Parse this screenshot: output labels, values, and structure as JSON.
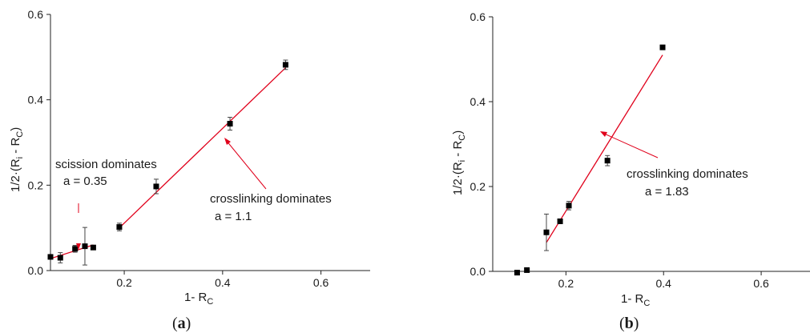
{
  "chart_data": [
    {
      "type": "scatter",
      "panel_label": "(a)",
      "xlabel": "1- R",
      "xlabel_sub": "C",
      "ylabel": "1/2·(R",
      "ylabel_sub1": "i",
      "ylabel_mid": " - R",
      "ylabel_sub2": "C",
      "ylabel_end": ")",
      "xlim": [
        0.05,
        0.7
      ],
      "ylim": [
        0.0,
        0.6
      ],
      "xticks": [
        "0.2",
        "0.4",
        "0.6"
      ],
      "xtick_values": [
        0.2,
        0.4,
        0.6
      ],
      "yticks": [
        "0.0",
        "0.2",
        "0.4",
        "0.6"
      ],
      "ytick_values": [
        0.0,
        0.2,
        0.4,
        0.6
      ],
      "grid": false,
      "marker_color": "#000000",
      "fit_color": "#e0001b",
      "points": [
        {
          "x": 0.05,
          "y": 0.032,
          "err": 0.004
        },
        {
          "x": 0.07,
          "y": 0.03,
          "err": 0.012
        },
        {
          "x": 0.1,
          "y": 0.051,
          "err": 0.008
        },
        {
          "x": 0.12,
          "y": 0.057,
          "err": 0.044
        },
        {
          "x": 0.137,
          "y": 0.054,
          "err": 0.004
        },
        {
          "x": 0.19,
          "y": 0.102,
          "err": 0.009
        },
        {
          "x": 0.265,
          "y": 0.197,
          "err": 0.017
        },
        {
          "x": 0.415,
          "y": 0.344,
          "err": 0.015
        },
        {
          "x": 0.528,
          "y": 0.482,
          "err": 0.011
        }
      ],
      "fits": [
        {
          "x": [
            0.05,
            0.137
          ],
          "y": [
            0.028,
            0.06
          ]
        },
        {
          "x": [
            0.19,
            0.528
          ],
          "y": [
            0.1,
            0.475
          ]
        }
      ],
      "annotations": [
        {
          "lines": [
            "scission dominates",
            "a = 0.35"
          ]
        },
        {
          "lines": [
            "crosslinking dominates",
            "a = 1.1"
          ]
        }
      ]
    },
    {
      "type": "scatter",
      "panel_label": "(b)",
      "xlabel": "1- R",
      "xlabel_sub": "C",
      "ylabel": "1/2·(R",
      "ylabel_sub1": "i",
      "ylabel_mid": " - R",
      "ylabel_sub2": "C",
      "ylabel_end": ")",
      "xlim": [
        0.05,
        0.7
      ],
      "ylim": [
        0.0,
        0.6
      ],
      "xticks": [
        "0.2",
        "0.4",
        "0.6"
      ],
      "xtick_values": [
        0.2,
        0.4,
        0.6
      ],
      "yticks": [
        "0.0",
        "0.2",
        "0.4",
        "0.6"
      ],
      "ytick_values": [
        0.0,
        0.2,
        0.4,
        0.6
      ],
      "grid": false,
      "marker_color": "#000000",
      "fit_color": "#e0001b",
      "points": [
        {
          "x": 0.1,
          "y": -0.003,
          "err": 0.0
        },
        {
          "x": 0.12,
          "y": 0.003,
          "err": 0.0
        },
        {
          "x": 0.16,
          "y": 0.092,
          "err": 0.043
        },
        {
          "x": 0.188,
          "y": 0.118,
          "err": 0.005
        },
        {
          "x": 0.206,
          "y": 0.155,
          "err": 0.01
        },
        {
          "x": 0.285,
          "y": 0.261,
          "err": 0.012
        },
        {
          "x": 0.398,
          "y": 0.528,
          "err": 0.0
        }
      ],
      "fits": [
        {
          "x": [
            0.16,
            0.398
          ],
          "y": [
            0.068,
            0.51
          ]
        }
      ],
      "annotations": [
        {
          "lines": [
            "crosslinking dominates",
            "a = 1.83"
          ]
        }
      ]
    }
  ]
}
